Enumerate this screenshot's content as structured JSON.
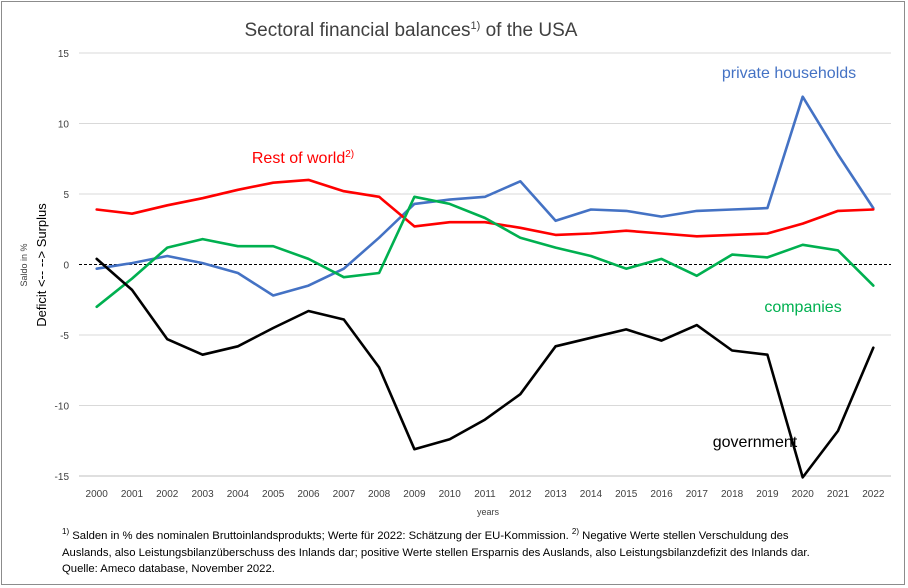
{
  "chart_data": {
    "type": "line",
    "title": "Sectoral financial balances",
    "title_sup": "1)",
    "title_suffix": " of the USA",
    "xlabel": "years",
    "ylabel": "Saldo in %",
    "ylabel2": "Deficit <-- --> Surplus",
    "ylim": [
      -15,
      15
    ],
    "yticks": [
      -15,
      -10,
      -5,
      0,
      5,
      10,
      15
    ],
    "grid": "horizontal",
    "zero_line": "dashed",
    "categories": [
      "2000",
      "2001",
      "2002",
      "2003",
      "2004",
      "2005",
      "2006",
      "2007",
      "2008",
      "2009",
      "2010",
      "2011",
      "2012",
      "2013",
      "2014",
      "2015",
      "2016",
      "2017",
      "2018",
      "2019",
      "2020",
      "2021",
      "2022"
    ],
    "series": [
      {
        "name": "private households",
        "color": "#4472C4",
        "values": [
          -0.3,
          0.1,
          0.6,
          0.1,
          -0.6,
          -2.2,
          -1.5,
          -0.3,
          1.9,
          4.3,
          4.6,
          4.8,
          5.9,
          3.1,
          3.9,
          3.8,
          3.4,
          3.8,
          3.9,
          4.0,
          11.9,
          7.8,
          4.0
        ]
      },
      {
        "name": "Rest of world",
        "name_sup": "2)",
        "color": "#FF0000",
        "values": [
          3.9,
          3.6,
          4.2,
          4.7,
          5.3,
          5.8,
          6.0,
          5.2,
          4.8,
          2.7,
          3.0,
          3.0,
          2.6,
          2.1,
          2.2,
          2.4,
          2.2,
          2.0,
          2.1,
          2.2,
          2.9,
          3.8,
          3.9
        ]
      },
      {
        "name": "companies",
        "color": "#00B050",
        "values": [
          -3.0,
          -1.0,
          1.2,
          1.8,
          1.3,
          1.3,
          0.4,
          -0.9,
          -0.6,
          4.8,
          4.3,
          3.3,
          1.9,
          1.2,
          0.6,
          -0.3,
          0.4,
          -0.8,
          0.7,
          0.5,
          1.4,
          1.0,
          -1.5
        ]
      },
      {
        "name": "government",
        "color": "#000000",
        "values": [
          0.4,
          -1.8,
          -5.3,
          -6.4,
          -5.8,
          -4.5,
          -3.3,
          -3.9,
          -7.3,
          -13.1,
          -12.4,
          -11.0,
          -9.2,
          -5.8,
          -5.2,
          -4.6,
          -5.4,
          -4.3,
          -6.1,
          -6.4,
          -15.1,
          -11.8,
          -5.9
        ]
      }
    ]
  },
  "footnote": {
    "line1_sup1": "1)",
    "line1_a": " Salden in % des nominalen Bruttoinlandsprodukts; Werte für 2022: Schätzung der EU-Kommission. ",
    "line1_sup2": "2)",
    "line1_b": " Negative Werte stellen Verschuldung des",
    "line2": "Auslands, also Leistungsbilanzüberschuss des Inlands dar; positive Werte stellen Ersparnis des Auslands, also Leistungsbilanzdefizit des Inlands dar.",
    "line3": "Quelle: Ameco database, November 2022."
  }
}
